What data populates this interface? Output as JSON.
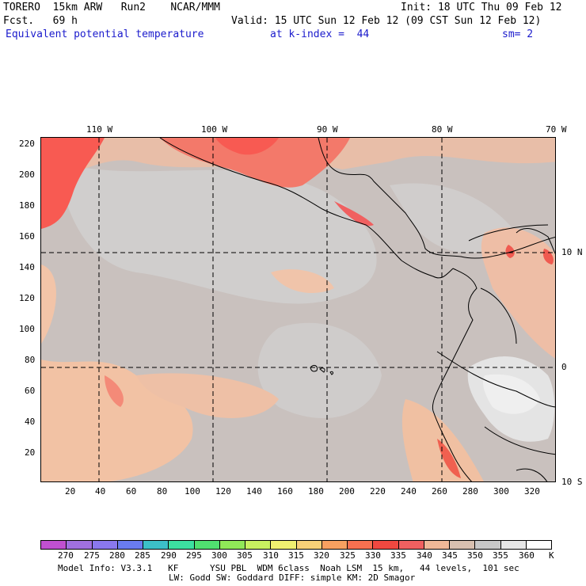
{
  "header": {
    "model": "TORERO  15km ARW   Run2    NCAR/MMM",
    "init": "Init: 18 UTC Thu 09 Feb 12",
    "fcst": "Fcst.   69 h",
    "valid": "Valid: 15 UTC Sun 12 Feb 12 (09 CST Sun 12 Feb 12)",
    "field": "Equivalent potential temperature",
    "level": "at k-index =  44",
    "smooth": "sm= 2"
  },
  "map": {
    "lon_labels": [
      "110 W",
      "100 W",
      "90 W",
      "80 W",
      "70 W"
    ],
    "lat_labels": [
      "10 N",
      "0",
      "10 S"
    ],
    "y_ticks": [
      "220",
      "200",
      "180",
      "160",
      "140",
      "120",
      "100",
      "80",
      "60",
      "40",
      "20"
    ],
    "x_ticks": [
      "20",
      "40",
      "60",
      "80",
      "100",
      "120",
      "140",
      "160",
      "180",
      "200",
      "220",
      "240",
      "260",
      "280",
      "300",
      "320"
    ],
    "colors": {
      "background_350": "#c9c1be",
      "warm_345": "#e0c2b0",
      "warm_340": "#f4c4a6",
      "hot_330": "#f07a6a",
      "hot_325": "#f85850",
      "gray_355": "#d2d2d2",
      "white_360": "#f0f0f0"
    }
  },
  "colorbar": {
    "labels": [
      "270",
      "275",
      "280",
      "285",
      "290",
      "295",
      "300",
      "305",
      "310",
      "315",
      "320",
      "325",
      "330",
      "335",
      "340",
      "345",
      "350",
      "355",
      "360",
      "K"
    ],
    "colors": [
      "#c050d0",
      "#a070e0",
      "#8a78ee",
      "#6a7cf0",
      "#3cc0c8",
      "#3ce0a0",
      "#50e070",
      "#90e858",
      "#c8f060",
      "#f0f070",
      "#f8d078",
      "#f8a060",
      "#f87050",
      "#f04840",
      "#f06060",
      "#f0b898",
      "#d8c0b0",
      "#c8c8c8",
      "#e6e6e6",
      "#ffffff"
    ]
  },
  "footer": {
    "line1": "Model Info: V3.3.1   KF      YSU PBL  WDM 6class  Noah LSM  15 km,   44 levels,  101 sec",
    "line2": "LW: Godd SW: Goddard DIFF: simple KM: 2D Smagor"
  }
}
